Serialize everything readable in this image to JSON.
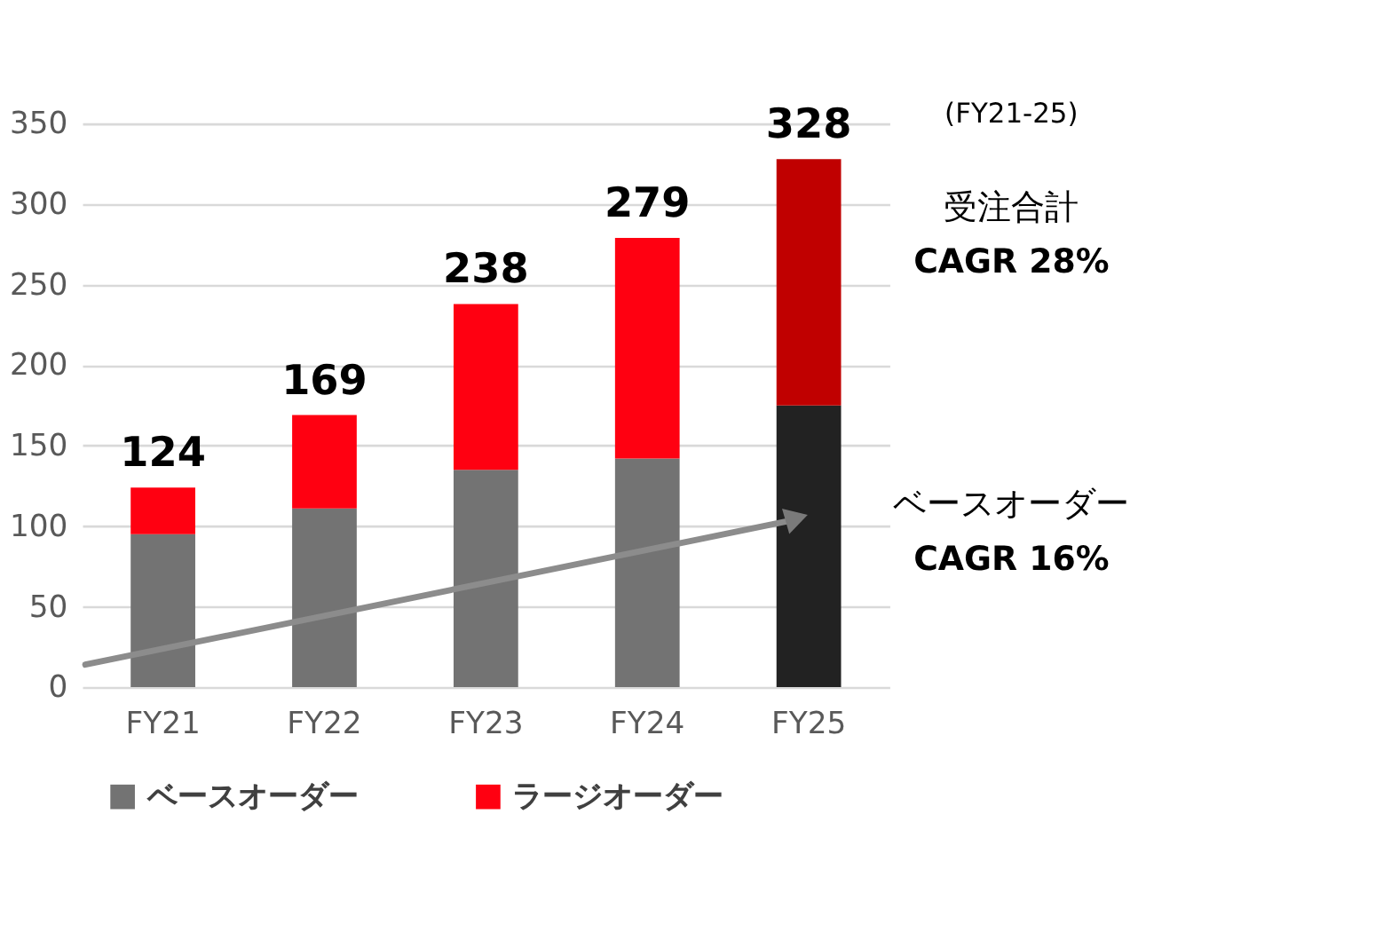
{
  "chart_data": {
    "type": "bar",
    "stacked": true,
    "categories": [
      "FY21",
      "FY22",
      "FY23",
      "FY24",
      "FY25"
    ],
    "series": [
      {
        "name": "ベースオーダー",
        "color": "#737373",
        "colors": [
          "#737373",
          "#737373",
          "#737373",
          "#737373",
          "#222222"
        ],
        "values": [
          95,
          111,
          135,
          142,
          175
        ]
      },
      {
        "name": "ラージオーダー",
        "color": "#ff0011",
        "colors": [
          "#ff0011",
          "#ff0011",
          "#ff0011",
          "#ff0011",
          "#c00000"
        ],
        "values": [
          29,
          58,
          103,
          137,
          153
        ]
      }
    ],
    "totals": [
      "124",
      "169",
      "238",
      "279",
      "328"
    ],
    "ylim": [
      0,
      350
    ],
    "yticks": [
      0,
      50,
      100,
      150,
      200,
      250,
      300,
      350
    ],
    "grid": "y",
    "legend": "bottom",
    "annotations": [
      "(FY21-25)",
      "受注合計\nCAGR 28%",
      "ベースオーダー\nCAGR 16%"
    ]
  }
}
